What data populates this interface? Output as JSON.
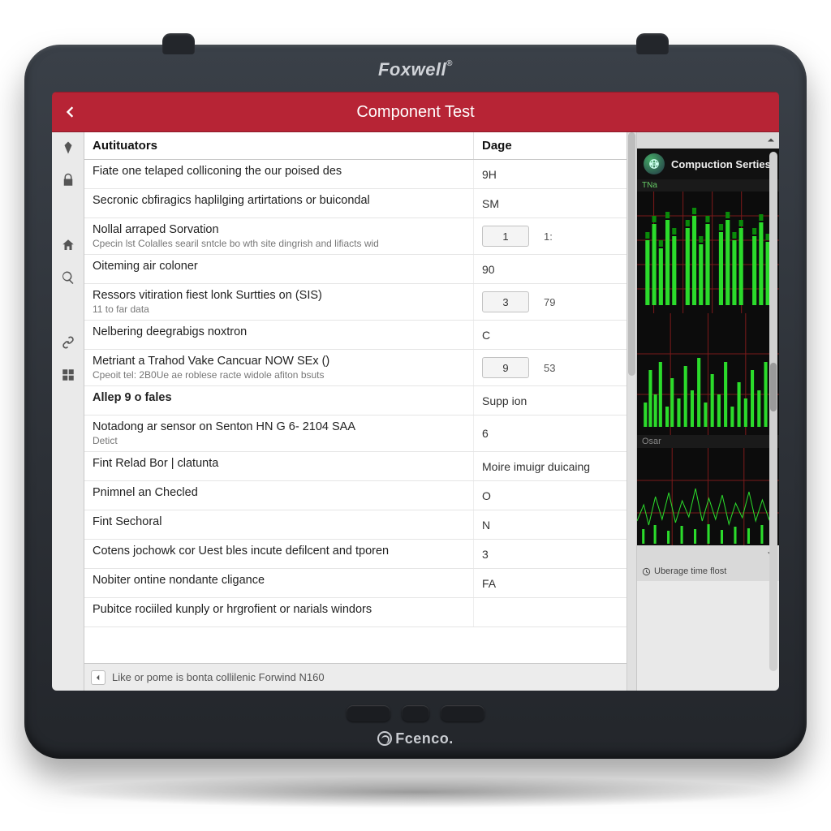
{
  "device": {
    "brand_top": "Foxwell",
    "brand_top_mark": "®",
    "brand_bottom": "Fcenco."
  },
  "header": {
    "title": "Component Test"
  },
  "table": {
    "col_a_header": "Autituators",
    "col_b_header": "Dage",
    "rows": [
      {
        "label": "Fiate one telaped colliconing the our poised des",
        "value_text": "9H"
      },
      {
        "label": "Secronic cbfiragics haplilging artirtations or buicondal",
        "value_text": "SM"
      },
      {
        "label": "Nollal arraped Sorvation",
        "sub": "Cpecin lst Colalles searil sntcle bo wth site dingrish and lifiacts wid",
        "input": "1",
        "aux": "1:"
      },
      {
        "label": "Oiteming air coloner",
        "value_text": "90"
      },
      {
        "label": "Ressors vitiration fiest lonk Surtties on (SIS)",
        "sub": "11 to far data",
        "input": "3",
        "aux": "79"
      },
      {
        "label": "Nelbering deegrabigs noxtron",
        "value_text": "C"
      },
      {
        "label": "Metriant a Trahod Vake Cancuar NOW SEx ()",
        "sub": "Cpeoit tel: 2B0Ue ae roblese racte widole afiton bsuts",
        "input": "9",
        "aux": "53"
      },
      {
        "section": true,
        "label": "Allep 9 o fales",
        "value_text": "Supp ion"
      },
      {
        "label": "Notadong ar sensor on Senton HN G 6- 2104 SAA",
        "sub": "Detict",
        "value_text": "6"
      },
      {
        "label": "Fint Relad Bor | clatunta",
        "value_text": "Moire imuigr duicaing"
      },
      {
        "label": "Pnimnel an Checled",
        "value_text": "O"
      },
      {
        "label": "Fint Sechoral",
        "value_text": "N"
      },
      {
        "label": "Cotens jochowk cor Uest bles incute defilcent and tporen",
        "value_text": "3"
      },
      {
        "label": "Nobiter ontine nondante cligance",
        "value_text": "FA"
      },
      {
        "label": "Pubitce rociiled kunply or hrgrofient or narials windors",
        "value_text": ""
      }
    ]
  },
  "status": {
    "text": "Like or pome is bonta collilenic Forwind N160"
  },
  "side_panel": {
    "title": "Compuction Serties",
    "mini_label": "TNa",
    "chart2_label": "Osar",
    "footer": "Uberage time flost"
  },
  "colors": {
    "header_bg": "#b72435",
    "device_bg": "#2c3036",
    "chart_bar": "#2bdb2b",
    "chart_grid": "#7a1a1a",
    "screen_bg": "#f6f6f6"
  }
}
